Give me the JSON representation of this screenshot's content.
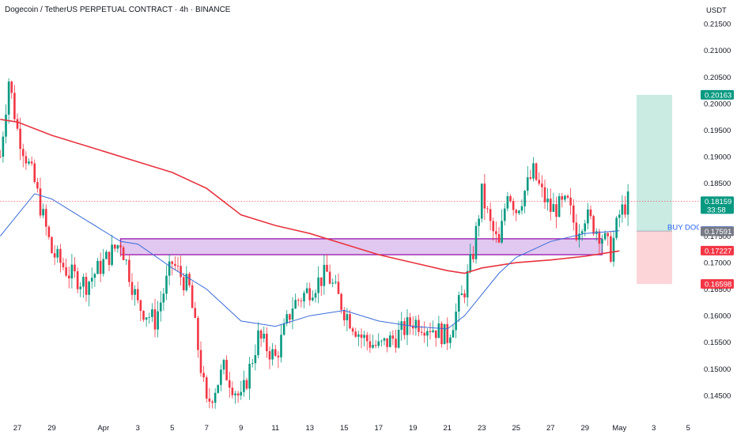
{
  "chart_data": {
    "type": "candlestick",
    "title": "Dogecoin / TetherUS PERPETUAL CONTRACT · 4h · BINANCE",
    "currency": "USDT",
    "ylim": [
      0.1405,
      0.2195
    ],
    "y_ticks": [
      "0.21500",
      "0.21000",
      "0.20500",
      "0.20000",
      "0.19500",
      "0.19000",
      "0.18500",
      "0.18000",
      "0.17500",
      "0.17000",
      "0.16500",
      "0.16000",
      "0.15500",
      "0.15000",
      "0.14500"
    ],
    "y_tick_values": [
      0.215,
      0.21,
      0.205,
      0.2,
      0.195,
      0.19,
      0.185,
      0.18,
      0.175,
      0.17,
      0.165,
      0.16,
      0.155,
      0.15,
      0.145
    ],
    "x_ticks": [
      "27",
      "29",
      "Apr",
      "3",
      "5",
      "7",
      "9",
      "11",
      "13",
      "15",
      "17",
      "19",
      "21",
      "23",
      "25",
      "27",
      "29",
      "May",
      "3",
      "5"
    ],
    "x_tick_dates": [
      "Mar 27",
      "Mar 29",
      "Apr 1",
      "Apr 3",
      "Apr 5",
      "Apr 7",
      "Apr 9",
      "Apr 11",
      "Apr 13",
      "Apr 15",
      "Apr 17",
      "Apr 19",
      "Apr 21",
      "Apr 23",
      "Apr 25",
      "Apr 27",
      "Apr 29",
      "May 1",
      "May 3",
      "May 5"
    ],
    "price_path_anchors": [
      {
        "date": "Mar 26",
        "price": 0.19
      },
      {
        "date": "Mar 26",
        "price": 0.2045
      },
      {
        "date": "Mar 27",
        "price": 0.195
      },
      {
        "date": "Mar 28",
        "price": 0.185
      },
      {
        "date": "Mar 29",
        "price": 0.172
      },
      {
        "date": "Mar 30",
        "price": 0.168
      },
      {
        "date": "Mar 31",
        "price": 0.166
      },
      {
        "date": "Apr 2",
        "price": 0.174
      },
      {
        "date": "Apr 3",
        "price": 0.162
      },
      {
        "date": "Apr 4",
        "price": 0.159
      },
      {
        "date": "Apr 5",
        "price": 0.17
      },
      {
        "date": "Apr 6",
        "price": 0.165
      },
      {
        "date": "Apr 7",
        "price": 0.143
      },
      {
        "date": "Apr 8",
        "price": 0.15
      },
      {
        "date": "Apr 9",
        "price": 0.144
      },
      {
        "date": "Apr 10",
        "price": 0.156
      },
      {
        "date": "Apr 11",
        "price": 0.152
      },
      {
        "date": "Apr 12",
        "price": 0.162
      },
      {
        "date": "Apr 14",
        "price": 0.168
      },
      {
        "date": "Apr 15",
        "price": 0.161
      },
      {
        "date": "Apr 16",
        "price": 0.156
      },
      {
        "date": "Apr 17",
        "price": 0.154
      },
      {
        "date": "Apr 18",
        "price": 0.156
      },
      {
        "date": "Apr 19",
        "price": 0.159
      },
      {
        "date": "Apr 20",
        "price": 0.158
      },
      {
        "date": "Apr 21",
        "price": 0.156
      },
      {
        "date": "Apr 22",
        "price": 0.165
      },
      {
        "date": "Apr 22",
        "price": 0.172
      },
      {
        "date": "Apr 23",
        "price": 0.183
      },
      {
        "date": "Apr 23",
        "price": 0.177
      },
      {
        "date": "Apr 24",
        "price": 0.173
      },
      {
        "date": "Apr 24",
        "price": 0.184
      },
      {
        "date": "Apr 25",
        "price": 0.18
      },
      {
        "date": "Apr 26",
        "price": 0.187
      },
      {
        "date": "Apr 26",
        "price": 0.183
      },
      {
        "date": "Apr 27",
        "price": 0.18
      },
      {
        "date": "Apr 28",
        "price": 0.181
      },
      {
        "date": "Apr 28",
        "price": 0.176
      },
      {
        "date": "Apr 29",
        "price": 0.179
      },
      {
        "date": "Apr 30",
        "price": 0.175
      },
      {
        "date": "Apr 30",
        "price": 0.172
      },
      {
        "date": "May 1",
        "price": 0.179
      },
      {
        "date": "May 1",
        "price": 0.1816
      }
    ],
    "ma_slow_red": [
      {
        "date": "Mar 26",
        "price": 0.197
      },
      {
        "date": "Mar 27",
        "price": 0.1965
      },
      {
        "date": "Mar 29",
        "price": 0.194
      },
      {
        "date": "Apr 1",
        "price": 0.191
      },
      {
        "date": "Apr 3",
        "price": 0.189
      },
      {
        "date": "Apr 5",
        "price": 0.187
      },
      {
        "date": "Apr 7",
        "price": 0.184
      },
      {
        "date": "Apr 9",
        "price": 0.179
      },
      {
        "date": "Apr 11",
        "price": 0.177
      },
      {
        "date": "Apr 13",
        "price": 0.1755
      },
      {
        "date": "Apr 15",
        "price": 0.1735
      },
      {
        "date": "Apr 17",
        "price": 0.1715
      },
      {
        "date": "Apr 19",
        "price": 0.17
      },
      {
        "date": "Apr 21",
        "price": 0.1685
      },
      {
        "date": "Apr 22",
        "price": 0.168
      },
      {
        "date": "Apr 23",
        "price": 0.169
      },
      {
        "date": "Apr 25",
        "price": 0.17
      },
      {
        "date": "Apr 27",
        "price": 0.1705
      },
      {
        "date": "Apr 29",
        "price": 0.1712
      },
      {
        "date": "May 1",
        "price": 0.1722
      }
    ],
    "ma_fast_blue": [
      {
        "date": "Mar 26",
        "price": 0.175
      },
      {
        "date": "Mar 27",
        "price": 0.179
      },
      {
        "date": "Mar 28",
        "price": 0.183
      },
      {
        "date": "Mar 29",
        "price": 0.182
      },
      {
        "date": "Mar 31",
        "price": 0.178
      },
      {
        "date": "Apr 2",
        "price": 0.174
      },
      {
        "date": "Apr 3",
        "price": 0.1735
      },
      {
        "date": "Apr 5",
        "price": 0.169
      },
      {
        "date": "Apr 7",
        "price": 0.165
      },
      {
        "date": "Apr 9",
        "price": 0.159
      },
      {
        "date": "Apr 11",
        "price": 0.158
      },
      {
        "date": "Apr 13",
        "price": 0.16
      },
      {
        "date": "Apr 15",
        "price": 0.161
      },
      {
        "date": "Apr 17",
        "price": 0.159
      },
      {
        "date": "Apr 19",
        "price": 0.158
      },
      {
        "date": "Apr 21",
        "price": 0.1575
      },
      {
        "date": "Apr 22",
        "price": 0.16
      },
      {
        "date": "Apr 23",
        "price": 0.164
      },
      {
        "date": "Apr 24",
        "price": 0.168
      },
      {
        "date": "Apr 25",
        "price": 0.171
      },
      {
        "date": "Apr 27",
        "price": 0.174
      },
      {
        "date": "Apr 29",
        "price": 0.1755
      },
      {
        "date": "May 1",
        "price": 0.176
      }
    ],
    "zone": {
      "date_start": "Apr 2",
      "date_end": "Apr 30",
      "price_top": 0.1745,
      "price_bottom": 0.1715
    },
    "position": {
      "date_start": "May 2",
      "date_end": "May 4",
      "target": 0.20163,
      "entry": 0.17596,
      "stop": 0.16598
    },
    "last_price": 0.18159,
    "price_tags": [
      {
        "label": "0.20163",
        "price": 0.20163,
        "color": "#089981"
      },
      {
        "label": "0.18159",
        "sub": "33:58",
        "price": 0.18159,
        "color": "#089981"
      },
      {
        "label": "0.17596",
        "price": 0.17596,
        "color": "#2962ff"
      },
      {
        "label": "0.17591",
        "price": 0.17591,
        "color": "#787b86"
      },
      {
        "label": "0.17227",
        "price": 0.17227,
        "color": "#f23645"
      },
      {
        "label": "0.16598",
        "price": 0.16598,
        "color": "#f23645"
      }
    ],
    "annotations": [
      "BUY DOG"
    ],
    "colors": {
      "up": "#089981",
      "down": "#f23645",
      "ma_slow": "#e8333f",
      "ma_fast": "#3a6bd9",
      "zone_fill": "#e1c8f0",
      "zone_border": "#9c27b0",
      "target_fill": "#c9ebe2",
      "stop_fill": "#fbd5d8"
    },
    "grid": false,
    "legend": "none"
  }
}
